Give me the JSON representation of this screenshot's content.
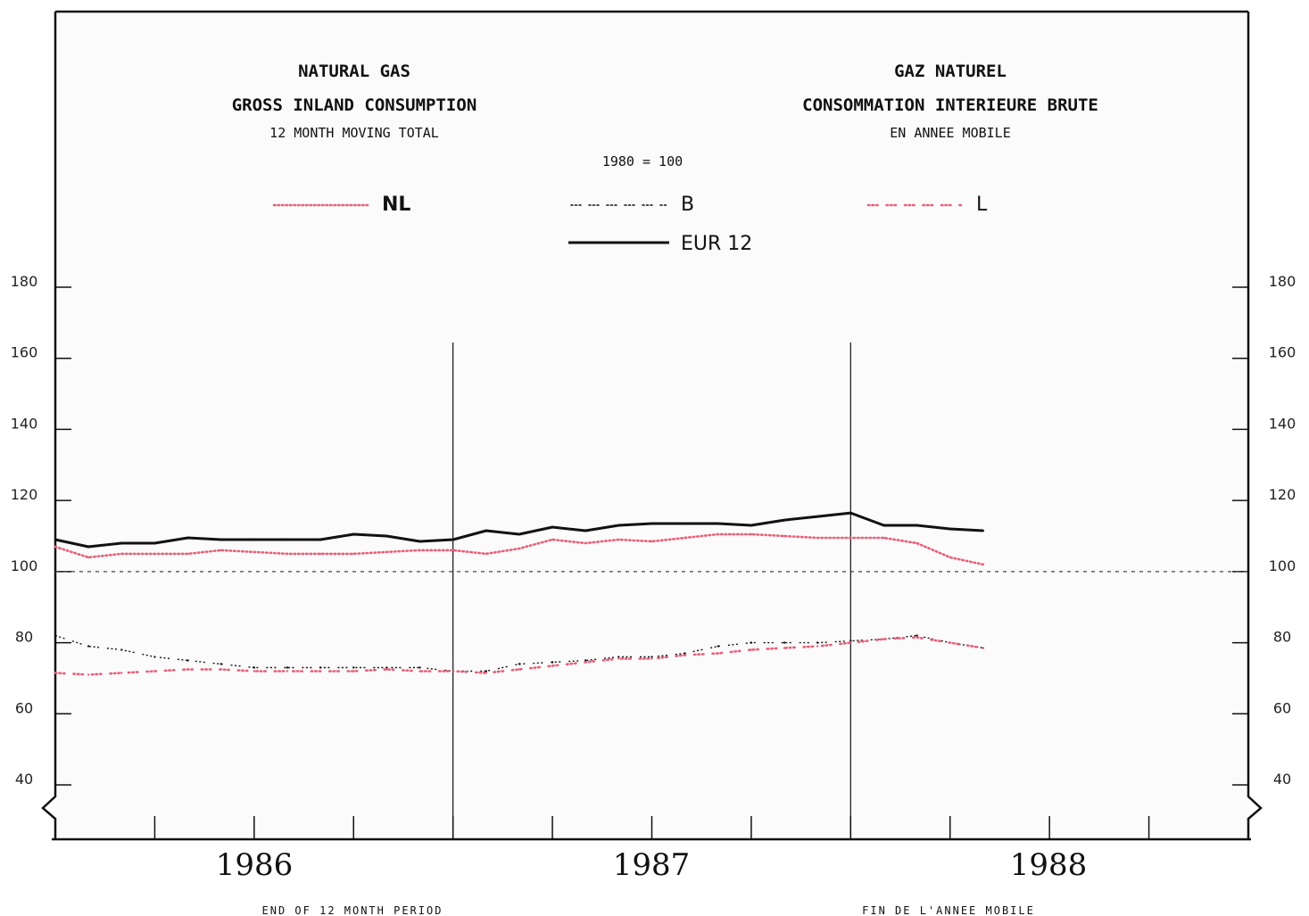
{
  "titles": {
    "en_title": "NATURAL GAS",
    "en_subtitle": "GROSS INLAND CONSUMPTION",
    "en_note": "12 MONTH MOVING TOTAL",
    "fr_title": "GAZ NATUREL",
    "fr_subtitle": "CONSOMMATION INTERIEURE BRUTE",
    "fr_note": "EN ANNEE MOBILE",
    "base": "1980 = 100"
  },
  "legend": {
    "nl": "NL",
    "b": "B",
    "l": "L",
    "eur": "EUR 12"
  },
  "footer": {
    "left": "END OF 12 MONTH PERIOD",
    "right": "FIN DE L'ANNEE MOBILE"
  },
  "colors": {
    "nl": "#e8607a",
    "b": "#111111",
    "l": "#e8607a",
    "eur": "#111111",
    "axis": "#111111"
  },
  "chart_data": {
    "type": "line",
    "x": [
      "1985-12",
      "1986-01",
      "1986-02",
      "1986-03",
      "1986-04",
      "1986-05",
      "1986-06",
      "1986-07",
      "1986-08",
      "1986-09",
      "1986-10",
      "1986-11",
      "1986-12",
      "1987-01",
      "1987-02",
      "1987-03",
      "1987-04",
      "1987-05",
      "1987-06",
      "1987-07",
      "1987-08",
      "1987-09",
      "1987-10",
      "1987-11",
      "1987-12",
      "1988-01",
      "1988-02",
      "1988-03",
      "1988-04"
    ],
    "xlim": [
      "1985-12",
      "1988-12"
    ],
    "x_tick_labels": [
      "1986",
      "1987",
      "1988"
    ],
    "y_ticks": [
      40,
      60,
      80,
      100,
      120,
      140,
      160,
      180
    ],
    "ylim": [
      40,
      180
    ],
    "reference_line": 100,
    "year_end_markers": [
      "1986-12",
      "1987-12"
    ],
    "series": [
      {
        "name": "NL",
        "style": "dotted",
        "values": [
          107,
          104,
          105,
          105,
          105,
          106,
          105.5,
          105,
          105,
          105,
          105.5,
          106,
          106,
          105,
          106.5,
          109,
          108,
          109,
          108.5,
          109.5,
          110.5,
          110.5,
          110,
          109.5,
          109.5,
          109.5,
          108,
          104,
          102
        ]
      },
      {
        "name": "B",
        "style": "plus",
        "values": [
          82,
          79,
          78,
          76,
          75,
          74,
          73,
          73,
          73,
          73,
          73,
          73,
          72,
          72,
          74,
          74.5,
          75,
          76,
          76,
          77,
          79,
          80,
          80,
          80,
          80.5,
          81,
          82,
          80,
          78.5
        ]
      },
      {
        "name": "L",
        "style": "dashed-dots",
        "values": [
          71.5,
          71,
          71.5,
          72,
          72.5,
          72.5,
          72,
          72,
          72,
          72,
          72.5,
          72,
          72,
          71.5,
          72.5,
          73.5,
          74.5,
          75.5,
          75.5,
          76.5,
          77,
          78,
          78.5,
          79,
          80,
          81,
          81.5,
          80,
          78.5
        ]
      },
      {
        "name": "EUR 12",
        "style": "solid",
        "values": [
          109,
          107,
          108,
          108,
          109.5,
          109,
          109,
          109,
          109,
          110.5,
          110,
          108.5,
          109,
          111.5,
          110.5,
          112.5,
          111.5,
          113,
          113.5,
          113.5,
          113.5,
          113,
          114.5,
          115.5,
          116.5,
          113,
          113,
          112,
          111.5
        ]
      }
    ]
  }
}
